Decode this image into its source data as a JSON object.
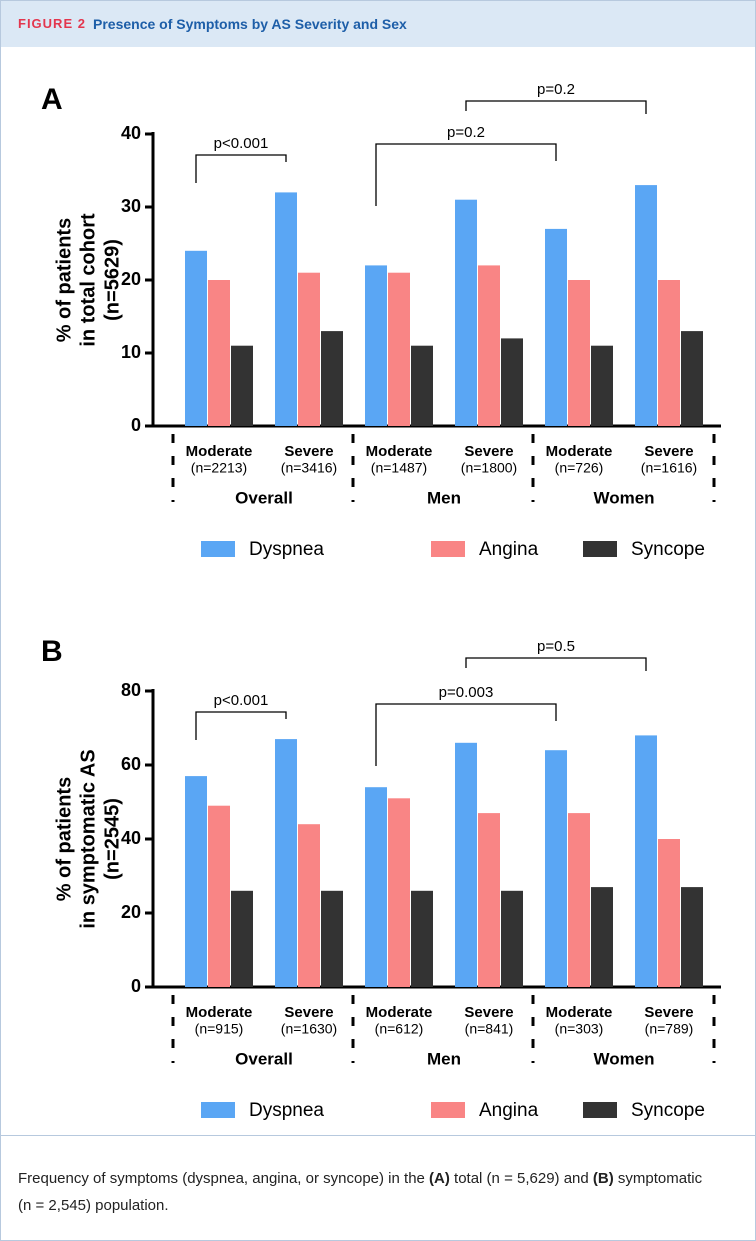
{
  "header": {
    "label": "FIGURE 2",
    "title": "Presence of Symptoms by AS Severity and Sex"
  },
  "chart_data": [
    {
      "type": "bar",
      "panel": "A",
      "y_label": [
        "% of patients",
        "in total cohort",
        "(n=5629)"
      ],
      "categories": [
        "Moderate",
        "Severe",
        "Moderate",
        "Severe",
        "Moderate",
        "Severe"
      ],
      "category_notes": [
        "(n=2213)",
        "(n=3416)",
        "(n=1487)",
        "(n=1800)",
        "(n=726)",
        "(n=1616)"
      ],
      "groups": [
        "Overall",
        "Men",
        "Women"
      ],
      "series": [
        {
          "name": "Dyspnea",
          "color": "#5aa6f4",
          "values": [
            24,
            32,
            22,
            31,
            27,
            33
          ]
        },
        {
          "name": "Angina",
          "color": "#f98585",
          "values": [
            20,
            21,
            21,
            22,
            20,
            20
          ]
        },
        {
          "name": "Syncope",
          "color": "#333333",
          "values": [
            11,
            13,
            11,
            12,
            11,
            13
          ]
        }
      ],
      "ylim": [
        0,
        40
      ],
      "yticks": [
        0,
        10,
        20,
        30,
        40
      ],
      "annotations": [
        "p<0.001",
        "p=0.2",
        "p=0.2"
      ]
    },
    {
      "type": "bar",
      "panel": "B",
      "y_label": [
        "% of patients",
        "in symptomatic AS",
        "(n=2545)"
      ],
      "categories": [
        "Moderate",
        "Severe",
        "Moderate",
        "Severe",
        "Moderate",
        "Severe"
      ],
      "category_notes": [
        "(n=915)",
        "(n=1630)",
        "(n=612)",
        "(n=841)",
        "(n=303)",
        "(n=789)"
      ],
      "groups": [
        "Overall",
        "Men",
        "Women"
      ],
      "series": [
        {
          "name": "Dyspnea",
          "color": "#5aa6f4",
          "values": [
            57,
            67,
            54,
            66,
            64,
            68
          ]
        },
        {
          "name": "Angina",
          "color": "#f98585",
          "values": [
            49,
            44,
            51,
            47,
            47,
            40
          ]
        },
        {
          "name": "Syncope",
          "color": "#333333",
          "values": [
            26,
            26,
            26,
            26,
            27,
            27
          ]
        }
      ],
      "ylim": [
        0,
        80
      ],
      "yticks": [
        0,
        20,
        40,
        60,
        80
      ],
      "annotations": [
        "p<0.001",
        "p=0.003",
        "p=0.5"
      ]
    }
  ],
  "caption": [
    "Frequency of symptoms (dyspnea, angina, or syncope) in the ",
    "(A)",
    " total (n = 5,629) and ",
    "(B)",
    " symptomatic (n = 2,545) population."
  ]
}
